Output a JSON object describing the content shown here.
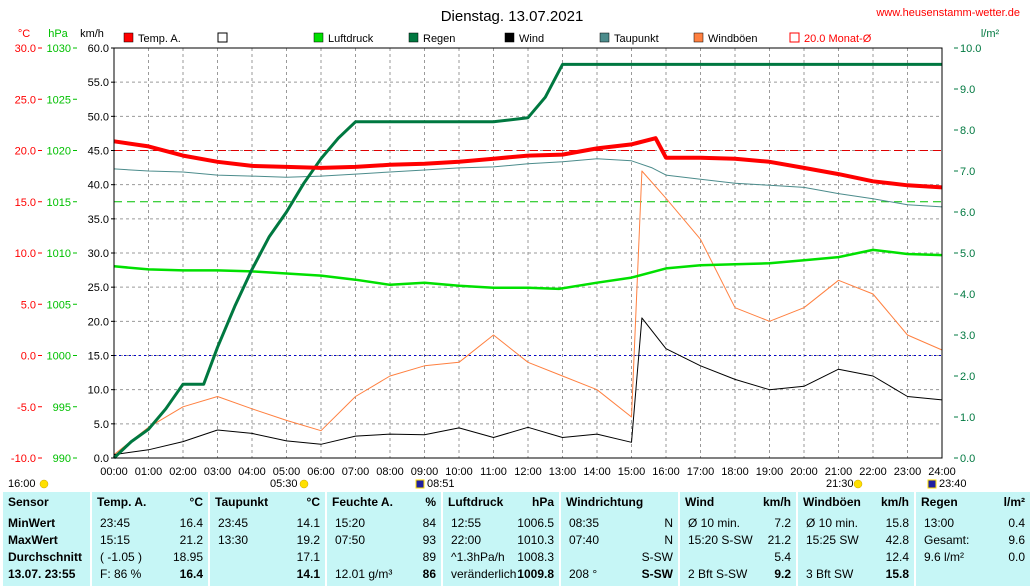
{
  "header": {
    "title": "Dienstag. 13.07.2021",
    "website": "www.heusenstamm-wetter.de"
  },
  "axes": {
    "temp_unit": "°C",
    "pressure_unit": "hPa",
    "wind_unit": "km/h",
    "rain_unit": "l/m²",
    "temp_ticks": [
      "30.0",
      "25.0",
      "20.0",
      "15.0",
      "10.0",
      "5.0",
      "0.0",
      "-5.0",
      "-10.0"
    ],
    "pressure_ticks": [
      "1030",
      "1025",
      "1020",
      "1015",
      "1010",
      "1005",
      "1000",
      "995",
      "990"
    ],
    "wind_ticks": [
      "60.0",
      "55.0",
      "50.0",
      "45.0",
      "40.0",
      "35.0",
      "30.0",
      "25.0",
      "20.0",
      "15.0",
      "10.0",
      "5.0",
      "0.0"
    ],
    "rain_ticks": [
      "10.0",
      "9.0",
      "8.0",
      "7.0",
      "6.0",
      "5.0",
      "4.0",
      "3.0",
      "2.0",
      "1.0",
      "0.0"
    ],
    "time_ticks": [
      "00:00",
      "01:00",
      "02:00",
      "03:00",
      "04:00",
      "05:00",
      "06:00",
      "07:00",
      "08:00",
      "09:00",
      "10:00",
      "11:00",
      "12:00",
      "13:00",
      "14:00",
      "15:00",
      "16:00",
      "17:00",
      "18:00",
      "19:00",
      "20:00",
      "21:00",
      "22:00",
      "23:00",
      "24:00"
    ]
  },
  "markers": {
    "left": "16:00",
    "sunrise": "05:30",
    "moon1": "08:51",
    "sunset": "21:30",
    "moon2": "23:40"
  },
  "legend": [
    {
      "label": "Temp. A.",
      "color": "#ff0000",
      "style": "filled"
    },
    {
      "label": "",
      "color": "#ffffff",
      "style": "empty"
    },
    {
      "label": "Luftdruck",
      "color": "#00e000",
      "style": "filled"
    },
    {
      "label": "Regen",
      "color": "#007840",
      "style": "filled"
    },
    {
      "label": "Wind",
      "color": "#000000",
      "style": "filled"
    },
    {
      "label": "Taupunkt",
      "color": "#4c8c8c",
      "style": "filled"
    },
    {
      "label": "Windböen",
      "color": "#ff8040",
      "style": "filled"
    },
    {
      "label": "20.0 Monat-Ø",
      "color": "#ff0000",
      "style": "outline"
    }
  ],
  "chart_data": {
    "type": "line",
    "x_range_hours": [
      0,
      24
    ],
    "axes_ranges": {
      "temp": [
        -10,
        30
      ],
      "pressure": [
        990,
        1030
      ],
      "wind": [
        0,
        60
      ],
      "rain": [
        0,
        10
      ]
    },
    "reference_lines": {
      "temp_month_avg": 20.0,
      "temp_zero": 0.0,
      "dewpoint_ref": 15.0
    },
    "series": [
      {
        "name": "Temp. A.",
        "axis": "temp",
        "color": "#ff0000",
        "points": [
          [
            0,
            20.9
          ],
          [
            1,
            20.4
          ],
          [
            2,
            19.5
          ],
          [
            3,
            18.9
          ],
          [
            4,
            18.5
          ],
          [
            5,
            18.4
          ],
          [
            6,
            18.3
          ],
          [
            7,
            18.4
          ],
          [
            8,
            18.6
          ],
          [
            9,
            18.7
          ],
          [
            10,
            18.9
          ],
          [
            11,
            19.2
          ],
          [
            12,
            19.5
          ],
          [
            13,
            19.6
          ],
          [
            14,
            20.2
          ],
          [
            15,
            20.6
          ],
          [
            15.7,
            21.2
          ],
          [
            16,
            19.3
          ],
          [
            17,
            19.3
          ],
          [
            18,
            19.2
          ],
          [
            19,
            18.9
          ],
          [
            20,
            18.3
          ],
          [
            21,
            17.7
          ],
          [
            22,
            17.0
          ],
          [
            23,
            16.6
          ],
          [
            24,
            16.4
          ]
        ]
      },
      {
        "name": "Taupunkt",
        "axis": "temp",
        "color": "#4c8c8c",
        "points": [
          [
            0,
            18.2
          ],
          [
            1,
            18.0
          ],
          [
            2,
            17.9
          ],
          [
            3,
            17.6
          ],
          [
            4,
            17.5
          ],
          [
            5,
            17.4
          ],
          [
            6,
            17.5
          ],
          [
            7,
            17.7
          ],
          [
            8,
            17.9
          ],
          [
            9,
            18.1
          ],
          [
            10,
            18.3
          ],
          [
            11,
            18.4
          ],
          [
            12,
            18.7
          ],
          [
            13,
            18.9
          ],
          [
            14,
            19.2
          ],
          [
            15,
            19.0
          ],
          [
            15.6,
            18.3
          ],
          [
            16,
            17.6
          ],
          [
            17,
            17.2
          ],
          [
            18,
            16.8
          ],
          [
            19,
            16.6
          ],
          [
            20,
            16.4
          ],
          [
            21,
            15.8
          ],
          [
            22,
            15.3
          ],
          [
            23,
            14.7
          ],
          [
            24,
            14.5
          ]
        ]
      },
      {
        "name": "Luftdruck",
        "axis": "pressure",
        "color": "#00e000",
        "points": [
          [
            0,
            1008.7
          ],
          [
            1,
            1008.4
          ],
          [
            2,
            1008.3
          ],
          [
            3,
            1008.3
          ],
          [
            4,
            1008.2
          ],
          [
            5,
            1008.0
          ],
          [
            6,
            1007.8
          ],
          [
            7,
            1007.4
          ],
          [
            8,
            1006.9
          ],
          [
            9,
            1007.1
          ],
          [
            10,
            1006.8
          ],
          [
            11,
            1006.6
          ],
          [
            12,
            1006.6
          ],
          [
            12.9,
            1006.5
          ],
          [
            14,
            1007.1
          ],
          [
            15,
            1007.6
          ],
          [
            16,
            1008.5
          ],
          [
            17,
            1008.8
          ],
          [
            18,
            1008.9
          ],
          [
            19,
            1009.0
          ],
          [
            20,
            1009.3
          ],
          [
            21,
            1009.6
          ],
          [
            22,
            1010.3
          ],
          [
            23,
            1009.9
          ],
          [
            24,
            1009.8
          ]
        ]
      },
      {
        "name": "Regen",
        "axis": "rain",
        "color": "#007840",
        "points": [
          [
            0,
            0.0
          ],
          [
            0.5,
            0.4
          ],
          [
            1,
            0.7
          ],
          [
            1.5,
            1.2
          ],
          [
            2,
            1.8
          ],
          [
            2.6,
            1.8
          ],
          [
            3,
            2.7
          ],
          [
            3.5,
            3.7
          ],
          [
            4,
            4.6
          ],
          [
            4.5,
            5.4
          ],
          [
            5,
            6.0
          ],
          [
            5.5,
            6.7
          ],
          [
            6,
            7.3
          ],
          [
            6.5,
            7.8
          ],
          [
            7,
            8.2
          ],
          [
            8,
            8.2
          ],
          [
            9,
            8.2
          ],
          [
            10,
            8.2
          ],
          [
            11,
            8.2
          ],
          [
            12,
            8.3
          ],
          [
            12.5,
            8.8
          ],
          [
            13,
            9.6
          ],
          [
            14,
            9.6
          ],
          [
            15,
            9.6
          ],
          [
            16,
            9.6
          ],
          [
            17,
            9.6
          ],
          [
            18,
            9.6
          ],
          [
            19,
            9.6
          ],
          [
            20,
            9.6
          ],
          [
            21,
            9.6
          ],
          [
            22,
            9.6
          ],
          [
            23,
            9.6
          ],
          [
            24,
            9.6
          ]
        ]
      },
      {
        "name": "Wind",
        "axis": "wind",
        "color": "#000000",
        "points": [
          [
            0,
            0.5
          ],
          [
            1,
            1.2
          ],
          [
            2,
            2.4
          ],
          [
            3,
            4.1
          ],
          [
            4,
            3.6
          ],
          [
            5,
            2.5
          ],
          [
            6,
            2.0
          ],
          [
            7,
            3.2
          ],
          [
            8,
            3.5
          ],
          [
            9,
            3.4
          ],
          [
            10,
            4.4
          ],
          [
            11,
            3.0
          ],
          [
            12,
            4.5
          ],
          [
            13,
            3.0
          ],
          [
            14,
            3.5
          ],
          [
            15,
            2.3
          ],
          [
            15.3,
            20.5
          ],
          [
            16,
            16.0
          ],
          [
            17,
            13.5
          ],
          [
            18,
            11.5
          ],
          [
            19,
            10.0
          ],
          [
            20,
            10.5
          ],
          [
            21,
            13.0
          ],
          [
            22,
            12.0
          ],
          [
            23,
            9.0
          ],
          [
            24,
            8.5
          ]
        ]
      },
      {
        "name": "Windböen",
        "axis": "wind",
        "color": "#ff8040",
        "points": [
          [
            0,
            0.5
          ],
          [
            1,
            4.5
          ],
          [
            2,
            7.5
          ],
          [
            3,
            9.0
          ],
          [
            4,
            7.2
          ],
          [
            5,
            5.5
          ],
          [
            6,
            4.0
          ],
          [
            7,
            9.0
          ],
          [
            8,
            12.0
          ],
          [
            9,
            13.5
          ],
          [
            10,
            14.0
          ],
          [
            11,
            18.0
          ],
          [
            12,
            14.0
          ],
          [
            13,
            12.0
          ],
          [
            14,
            10.0
          ],
          [
            15,
            6.0
          ],
          [
            15.3,
            42.0
          ],
          [
            16,
            38.0
          ],
          [
            17,
            32.0
          ],
          [
            18,
            22.0
          ],
          [
            19,
            20.0
          ],
          [
            20,
            22.0
          ],
          [
            21,
            26.0
          ],
          [
            22,
            24.0
          ],
          [
            23,
            18.0
          ],
          [
            24,
            15.8
          ]
        ]
      }
    ]
  },
  "summary": {
    "columns": [
      {
        "header": "Sensor",
        "unit": "",
        "rows": [
          [
            "MinWert",
            ""
          ],
          [
            "MaxWert",
            ""
          ],
          [
            "Durchschnitt",
            ""
          ],
          [
            "13.07. 23:55",
            ""
          ]
        ]
      },
      {
        "header": "Temp. A.",
        "unit": "°C",
        "rows": [
          [
            "23:45",
            "16.4"
          ],
          [
            "15:15",
            "21.2"
          ],
          [
            "( -1.05 )",
            "18.95"
          ],
          [
            "F: 86 %",
            "16.4"
          ]
        ]
      },
      {
        "header": "Taupunkt",
        "unit": "°C",
        "rows": [
          [
            "23:45",
            "14.1"
          ],
          [
            "13:30",
            "19.2"
          ],
          [
            "",
            "17.1"
          ],
          [
            "",
            "14.1"
          ]
        ]
      },
      {
        "header": "Feuchte A.",
        "unit": "%",
        "rows": [
          [
            "15:20",
            "84"
          ],
          [
            "07:50",
            "93"
          ],
          [
            "",
            "89"
          ],
          [
            "12.01 g/m³",
            "86"
          ]
        ]
      },
      {
        "header": "Luftdruck",
        "unit": "hPa",
        "rows": [
          [
            "12:55",
            "1006.5"
          ],
          [
            "22:00",
            "1010.3"
          ],
          [
            "^1.3hPa/h",
            "1008.3"
          ],
          [
            "veränderlich",
            "1009.8"
          ]
        ]
      },
      {
        "header": "Windrichtung",
        "unit": "",
        "rows": [
          [
            "08:35",
            "N"
          ],
          [
            "07:40",
            "N"
          ],
          [
            "",
            "S-SW"
          ],
          [
            "208 °",
            "S-SW"
          ]
        ]
      },
      {
        "header": "Wind",
        "unit": "km/h",
        "rows": [
          [
            "Ø 10 min.",
            "7.2"
          ],
          [
            "15:20   S-SW",
            "21.2"
          ],
          [
            "",
            "5.4"
          ],
          [
            "2 Bft S-SW",
            "9.2"
          ]
        ]
      },
      {
        "header": "Windböen",
        "unit": "km/h",
        "rows": [
          [
            "Ø 10 min.",
            "15.8"
          ],
          [
            "15:25   SW",
            "42.8"
          ],
          [
            "",
            "12.4"
          ],
          [
            "3 Bft SW",
            "15.8"
          ]
        ]
      },
      {
        "header": "Regen",
        "unit": "l/m²",
        "rows": [
          [
            "13:00",
            "0.4"
          ],
          [
            "Gesamt:",
            "9.6"
          ],
          [
            "9.6 l/m²",
            "0.0"
          ],
          [
            "",
            ""
          ]
        ]
      }
    ]
  }
}
